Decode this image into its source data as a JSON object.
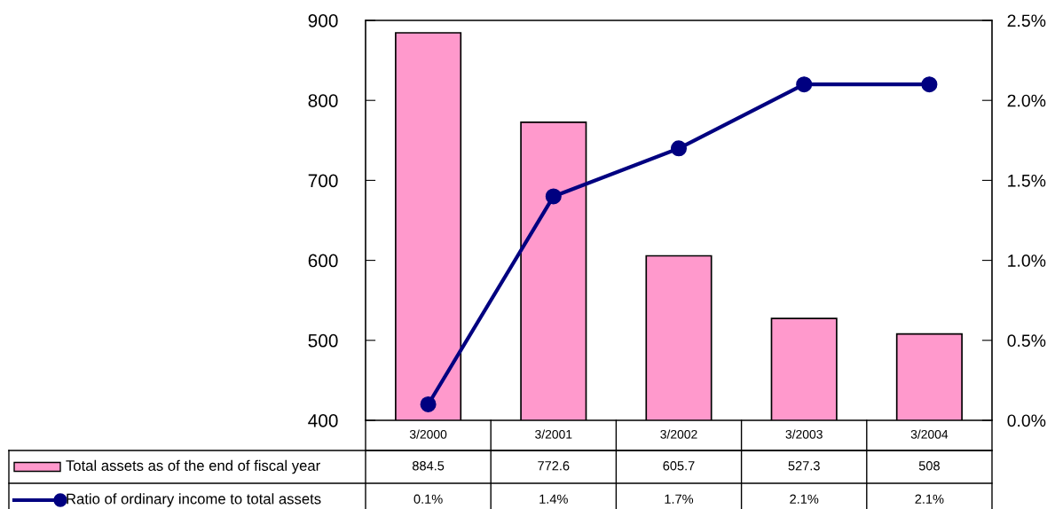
{
  "chart_data": {
    "type": "bar",
    "categories": [
      "3/2000",
      "3/2001",
      "3/2002",
      "3/2003",
      "3/2004"
    ],
    "series": [
      {
        "name": "Total assets as of the end of fiscal year",
        "color": "#ff99cc",
        "values": [
          884.5,
          772.6,
          605.7,
          527.3,
          508
        ],
        "value_labels": [
          "884.5",
          "772.6",
          "605.7",
          "527.3",
          "508"
        ]
      },
      {
        "name": "Ratio of ordinary income to total assets",
        "type": "line",
        "axis": "y2",
        "color": "#000080",
        "marker": "circle",
        "line_style": "solid",
        "values": [
          0.1,
          1.4,
          1.7,
          2.1,
          2.1
        ],
        "value_labels": [
          "0.1%",
          "1.4%",
          "1.7%",
          "2.1%",
          "2.1%"
        ]
      }
    ],
    "ylim": [
      400,
      900
    ],
    "yticks": [
      400,
      500,
      600,
      700,
      800,
      900
    ],
    "y2lim": [
      0,
      2.5
    ],
    "y2ticks": [
      {
        "value": 0,
        "label": "0.0%"
      },
      {
        "value": 0.5,
        "label": "0.5%"
      },
      {
        "value": 1.0,
        "label": "1.0%"
      },
      {
        "value": 1.5,
        "label": "1.5%"
      },
      {
        "value": 2.0,
        "label": "2.0%"
      },
      {
        "value": 2.5,
        "label": "2.5%"
      }
    ],
    "grid": false,
    "legend": "bottom"
  }
}
